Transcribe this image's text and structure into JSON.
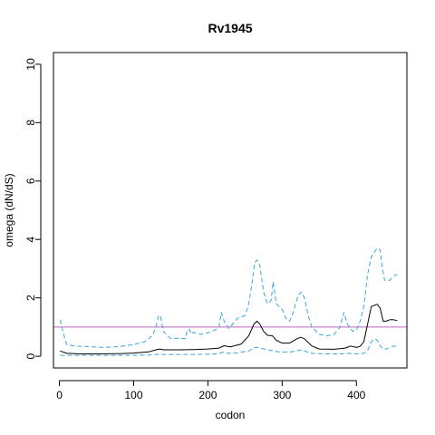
{
  "chart_data": {
    "type": "line",
    "title": "Rv1945",
    "xlabel": "codon",
    "ylabel": "omega (dN/dS)",
    "xlim": [
      -8,
      468
    ],
    "ylim": [
      -0.4,
      10.4
    ],
    "xticks": [
      0,
      100,
      200,
      300,
      400
    ],
    "yticks": [
      0,
      2,
      4,
      6,
      8,
      10
    ],
    "reference_line": {
      "y": 1,
      "color": "#c060c0"
    },
    "series": [
      {
        "style": "solid",
        "color": "#000000",
        "x": [
          1,
          10,
          30,
          50,
          80,
          100,
          120,
          130,
          135,
          140,
          160,
          180,
          200,
          215,
          222,
          230,
          245,
          255,
          262,
          266,
          270,
          275,
          280,
          287,
          292,
          300,
          310,
          320,
          325,
          330,
          340,
          350,
          370,
          385,
          392,
          400,
          405,
          410,
          415,
          420,
          425,
          428,
          432,
          436,
          440,
          445,
          450,
          455
        ],
        "y": [
          0.18,
          0.1,
          0.08,
          0.08,
          0.09,
          0.11,
          0.15,
          0.22,
          0.25,
          0.22,
          0.22,
          0.23,
          0.25,
          0.28,
          0.36,
          0.32,
          0.42,
          0.7,
          1.1,
          1.2,
          1.1,
          0.85,
          0.72,
          0.7,
          0.55,
          0.45,
          0.45,
          0.6,
          0.65,
          0.6,
          0.35,
          0.25,
          0.24,
          0.28,
          0.35,
          0.3,
          0.34,
          0.5,
          1.1,
          1.7,
          1.75,
          1.78,
          1.65,
          1.2,
          1.2,
          1.25,
          1.25,
          1.22
        ]
      },
      {
        "style": "dashed",
        "color": "#3aa4dc",
        "x": [
          1,
          5,
          10,
          20,
          40,
          60,
          80,
          100,
          115,
          125,
          130,
          133,
          136,
          140,
          150,
          160,
          170,
          172,
          175,
          178,
          180,
          190,
          200,
          210,
          215,
          218,
          222,
          228,
          240,
          250,
          255,
          260,
          263,
          266,
          270,
          275,
          280,
          285,
          288,
          292,
          296,
          300,
          305,
          310,
          315,
          318,
          322,
          326,
          330,
          335,
          340,
          350,
          360,
          370,
          378,
          383,
          388,
          395,
          400,
          405,
          410,
          415,
          420,
          425,
          428,
          432,
          435,
          438,
          440,
          445,
          450,
          455
        ],
        "y": [
          1.25,
          0.8,
          0.4,
          0.35,
          0.33,
          0.3,
          0.33,
          0.4,
          0.5,
          0.7,
          1.0,
          1.35,
          1.4,
          0.85,
          0.6,
          0.62,
          0.6,
          0.9,
          0.92,
          0.75,
          0.82,
          0.75,
          0.8,
          0.9,
          1.0,
          1.5,
          1.2,
          0.95,
          1.3,
          1.4,
          1.8,
          2.6,
          3.2,
          3.3,
          3.1,
          2.2,
          1.8,
          1.9,
          2.55,
          1.8,
          1.7,
          1.6,
          1.3,
          1.2,
          1.5,
          1.8,
          2.1,
          2.2,
          2.0,
          1.4,
          1.0,
          0.75,
          0.7,
          0.75,
          1.0,
          1.5,
          1.1,
          0.85,
          0.9,
          1.2,
          1.7,
          2.8,
          3.4,
          3.6,
          3.7,
          3.65,
          3.0,
          2.6,
          2.6,
          2.6,
          2.75,
          2.8
        ]
      },
      {
        "style": "dashed",
        "color": "#3aa4dc",
        "x": [
          1,
          20,
          60,
          100,
          120,
          130,
          135,
          140,
          160,
          200,
          215,
          220,
          225,
          240,
          255,
          262,
          266,
          270,
          275,
          285,
          295,
          310,
          322,
          326,
          330,
          340,
          360,
          380,
          390,
          400,
          410,
          415,
          420,
          425,
          428,
          432,
          436,
          440,
          445,
          450,
          455
        ],
        "y": [
          0.03,
          0.03,
          0.03,
          0.03,
          0.04,
          0.06,
          0.08,
          0.06,
          0.06,
          0.07,
          0.09,
          0.14,
          0.1,
          0.12,
          0.18,
          0.3,
          0.3,
          0.28,
          0.25,
          0.2,
          0.15,
          0.14,
          0.2,
          0.22,
          0.18,
          0.1,
          0.08,
          0.08,
          0.1,
          0.08,
          0.1,
          0.2,
          0.5,
          0.6,
          0.55,
          0.35,
          0.25,
          0.25,
          0.3,
          0.35,
          0.34
        ]
      }
    ]
  }
}
